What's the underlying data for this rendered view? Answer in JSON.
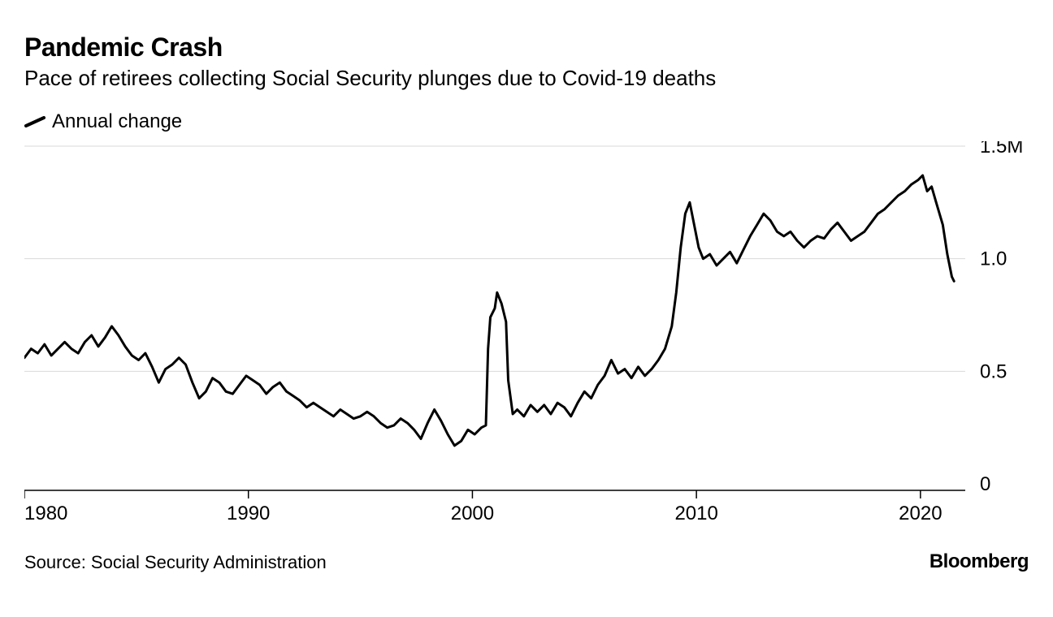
{
  "title": "Pandemic Crash",
  "subtitle": "Pace of retirees collecting Social Security plunges due to Covid-19 deaths",
  "legend": {
    "label": "Annual change"
  },
  "source": "Source: Social Security Administration",
  "brand": "Bloomberg",
  "chart": {
    "type": "line",
    "background_color": "#ffffff",
    "line_color": "#000000",
    "line_width": 3,
    "grid_color": "#d9d9d9",
    "axis_color": "#000000",
    "axis_width": 1.5,
    "tick_length": 10,
    "x": {
      "min": 1980,
      "max": 2022,
      "ticks": [
        1980,
        1990,
        2000,
        2010,
        2020
      ],
      "labels": [
        "1980",
        "1990",
        "2000",
        "2010",
        "2020"
      ],
      "label_fontsize": 24
    },
    "y": {
      "min": 0,
      "max": 1.5,
      "ticks": [
        0,
        0.5,
        1.0,
        1.5
      ],
      "labels": [
        "0",
        "0.5",
        "1.0",
        "1.5M"
      ],
      "label_fontsize": 24,
      "grid": true
    },
    "series": {
      "name": "Annual change",
      "data": [
        [
          1980.0,
          0.56
        ],
        [
          1980.3,
          0.6
        ],
        [
          1980.6,
          0.58
        ],
        [
          1980.9,
          0.62
        ],
        [
          1981.2,
          0.57
        ],
        [
          1981.5,
          0.6
        ],
        [
          1981.8,
          0.63
        ],
        [
          1982.1,
          0.6
        ],
        [
          1982.4,
          0.58
        ],
        [
          1982.7,
          0.63
        ],
        [
          1983.0,
          0.66
        ],
        [
          1983.3,
          0.61
        ],
        [
          1983.6,
          0.65
        ],
        [
          1983.9,
          0.7
        ],
        [
          1984.2,
          0.66
        ],
        [
          1984.5,
          0.61
        ],
        [
          1984.8,
          0.57
        ],
        [
          1985.1,
          0.55
        ],
        [
          1985.4,
          0.58
        ],
        [
          1985.7,
          0.52
        ],
        [
          1986.0,
          0.45
        ],
        [
          1986.3,
          0.51
        ],
        [
          1986.6,
          0.53
        ],
        [
          1986.9,
          0.56
        ],
        [
          1987.2,
          0.53
        ],
        [
          1987.5,
          0.45
        ],
        [
          1987.8,
          0.38
        ],
        [
          1988.1,
          0.41
        ],
        [
          1988.4,
          0.47
        ],
        [
          1988.7,
          0.45
        ],
        [
          1989.0,
          0.41
        ],
        [
          1989.3,
          0.4
        ],
        [
          1989.6,
          0.44
        ],
        [
          1989.9,
          0.48
        ],
        [
          1990.2,
          0.46
        ],
        [
          1990.5,
          0.44
        ],
        [
          1990.8,
          0.4
        ],
        [
          1991.1,
          0.43
        ],
        [
          1991.4,
          0.45
        ],
        [
          1991.7,
          0.41
        ],
        [
          1992.0,
          0.39
        ],
        [
          1992.3,
          0.37
        ],
        [
          1992.6,
          0.34
        ],
        [
          1992.9,
          0.36
        ],
        [
          1993.2,
          0.34
        ],
        [
          1993.5,
          0.32
        ],
        [
          1993.8,
          0.3
        ],
        [
          1994.1,
          0.33
        ],
        [
          1994.4,
          0.31
        ],
        [
          1994.7,
          0.29
        ],
        [
          1995.0,
          0.3
        ],
        [
          1995.3,
          0.32
        ],
        [
          1995.6,
          0.3
        ],
        [
          1995.9,
          0.27
        ],
        [
          1996.2,
          0.25
        ],
        [
          1996.5,
          0.26
        ],
        [
          1996.8,
          0.29
        ],
        [
          1997.1,
          0.27
        ],
        [
          1997.4,
          0.24
        ],
        [
          1997.7,
          0.2
        ],
        [
          1998.0,
          0.27
        ],
        [
          1998.3,
          0.33
        ],
        [
          1998.6,
          0.28
        ],
        [
          1998.9,
          0.22
        ],
        [
          1999.2,
          0.17
        ],
        [
          1999.5,
          0.19
        ],
        [
          1999.8,
          0.24
        ],
        [
          2000.1,
          0.22
        ],
        [
          2000.4,
          0.25
        ],
        [
          2000.6,
          0.26
        ],
        [
          2000.7,
          0.6
        ],
        [
          2000.8,
          0.74
        ],
        [
          2001.0,
          0.78
        ],
        [
          2001.1,
          0.85
        ],
        [
          2001.3,
          0.8
        ],
        [
          2001.5,
          0.72
        ],
        [
          2001.6,
          0.46
        ],
        [
          2001.8,
          0.31
        ],
        [
          2002.0,
          0.33
        ],
        [
          2002.3,
          0.3
        ],
        [
          2002.6,
          0.35
        ],
        [
          2002.9,
          0.32
        ],
        [
          2003.2,
          0.35
        ],
        [
          2003.5,
          0.31
        ],
        [
          2003.8,
          0.36
        ],
        [
          2004.1,
          0.34
        ],
        [
          2004.4,
          0.3
        ],
        [
          2004.7,
          0.36
        ],
        [
          2005.0,
          0.41
        ],
        [
          2005.3,
          0.38
        ],
        [
          2005.6,
          0.44
        ],
        [
          2005.9,
          0.48
        ],
        [
          2006.2,
          0.55
        ],
        [
          2006.5,
          0.49
        ],
        [
          2006.8,
          0.51
        ],
        [
          2007.1,
          0.47
        ],
        [
          2007.4,
          0.52
        ],
        [
          2007.7,
          0.48
        ],
        [
          2008.0,
          0.51
        ],
        [
          2008.3,
          0.55
        ],
        [
          2008.6,
          0.6
        ],
        [
          2008.9,
          0.7
        ],
        [
          2009.1,
          0.85
        ],
        [
          2009.3,
          1.05
        ],
        [
          2009.5,
          1.2
        ],
        [
          2009.7,
          1.25
        ],
        [
          2009.9,
          1.15
        ],
        [
          2010.1,
          1.05
        ],
        [
          2010.3,
          1.0
        ],
        [
          2010.6,
          1.02
        ],
        [
          2010.9,
          0.97
        ],
        [
          2011.2,
          1.0
        ],
        [
          2011.5,
          1.03
        ],
        [
          2011.8,
          0.98
        ],
        [
          2012.1,
          1.04
        ],
        [
          2012.4,
          1.1
        ],
        [
          2012.7,
          1.15
        ],
        [
          2013.0,
          1.2
        ],
        [
          2013.3,
          1.17
        ],
        [
          2013.6,
          1.12
        ],
        [
          2013.9,
          1.1
        ],
        [
          2014.2,
          1.12
        ],
        [
          2014.5,
          1.08
        ],
        [
          2014.8,
          1.05
        ],
        [
          2015.1,
          1.08
        ],
        [
          2015.4,
          1.1
        ],
        [
          2015.7,
          1.09
        ],
        [
          2016.0,
          1.13
        ],
        [
          2016.3,
          1.16
        ],
        [
          2016.6,
          1.12
        ],
        [
          2016.9,
          1.08
        ],
        [
          2017.2,
          1.1
        ],
        [
          2017.5,
          1.12
        ],
        [
          2017.8,
          1.16
        ],
        [
          2018.1,
          1.2
        ],
        [
          2018.4,
          1.22
        ],
        [
          2018.7,
          1.25
        ],
        [
          2019.0,
          1.28
        ],
        [
          2019.3,
          1.3
        ],
        [
          2019.6,
          1.33
        ],
        [
          2019.9,
          1.35
        ],
        [
          2020.1,
          1.37
        ],
        [
          2020.3,
          1.3
        ],
        [
          2020.5,
          1.32
        ],
        [
          2020.7,
          1.25
        ],
        [
          2021.0,
          1.15
        ],
        [
          2021.2,
          1.02
        ],
        [
          2021.4,
          0.92
        ],
        [
          2021.5,
          0.9
        ]
      ]
    }
  }
}
